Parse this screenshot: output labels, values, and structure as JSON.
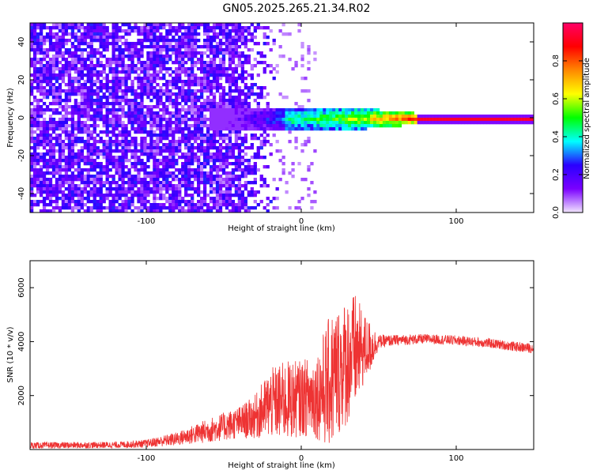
{
  "title": "GN05.2025.265.21.34.R02",
  "chart_data": [
    {
      "type": "heatmap",
      "xlabel": "Height of straight line (km)",
      "ylabel": "Frequency (Hz)",
      "xlim": [
        -175,
        150
      ],
      "ylim": [
        -50,
        50
      ],
      "xticks": [
        -100,
        0,
        100
      ],
      "yticks": [
        -40,
        -20,
        0,
        20,
        40
      ],
      "colorbar": {
        "label": "Normalized spectral amplitude",
        "range": [
          0.0,
          1.0
        ],
        "ticks": [
          0.0,
          0.2,
          0.4,
          0.6,
          0.8
        ],
        "colors": [
          "#f2e6ff",
          "#7a00ff",
          "#2a00ff",
          "#00ffff",
          "#00ff00",
          "#ffff00",
          "#ff8800",
          "#ff0000",
          "#ff0066"
        ]
      },
      "description_points": [
        {
          "x": -150,
          "noise_amp": 0.25
        },
        {
          "x": -60,
          "noise_amp": 0.22
        },
        {
          "x": -30,
          "noise_amp": 0.12
        },
        {
          "x": 0,
          "band_amp": 0.45,
          "band_halfwidth_hz": 4
        },
        {
          "x": 40,
          "band_amp": 0.6,
          "band_halfwidth_hz": 4
        },
        {
          "x": 80,
          "band_amp": 0.95,
          "band_halfwidth_hz": 1
        },
        {
          "x": 150,
          "band_amp": 0.95,
          "band_halfwidth_hz": 1
        }
      ]
    },
    {
      "type": "line",
      "xlabel": "Height of straight line (km)",
      "ylabel": "SNR (10 * v/v)",
      "xlim": [
        -175,
        150
      ],
      "ylim": [
        0,
        7000
      ],
      "xticks": [
        -100,
        0,
        100
      ],
      "yticks": [
        2000,
        4000,
        6000
      ],
      "color": "#ee3333",
      "envelope": {
        "x": [
          -175,
          -120,
          -100,
          -80,
          -60,
          -40,
          -30,
          -20,
          -10,
          0,
          10,
          15,
          20,
          25,
          30,
          35,
          40,
          45,
          50,
          60,
          80,
          100,
          120,
          140,
          150
        ],
        "y_mean": [
          150,
          170,
          220,
          400,
          700,
          1000,
          1200,
          1700,
          1800,
          1900,
          2000,
          2300,
          2600,
          3000,
          3300,
          3600,
          3700,
          3800,
          4000,
          4050,
          4100,
          4050,
          3950,
          3800,
          3750
        ],
        "y_spread": [
          120,
          120,
          150,
          250,
          450,
          600,
          800,
          1300,
          1500,
          1400,
          1600,
          2200,
          2600,
          2400,
          2400,
          2200,
          1400,
          900,
          250,
          200,
          180,
          180,
          180,
          180,
          180
        ]
      }
    }
  ]
}
